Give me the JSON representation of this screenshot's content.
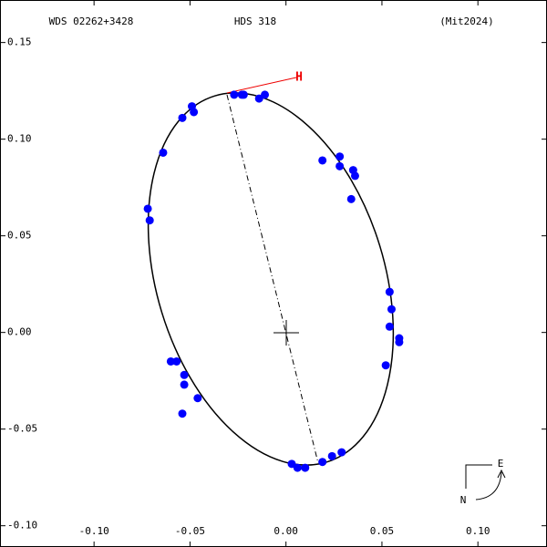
{
  "chart_data": {
    "type": "scatter",
    "subtitle": "WDS 02262+3428",
    "title": "HDS 318",
    "reference": "(Mit2024)",
    "periastron_label": "H",
    "east_label": "E",
    "north_label": "N",
    "color": "#0000ff",
    "xlim": [
      -0.149,
      0.136
    ],
    "ylim": [
      -0.111,
      0.172
    ],
    "xticks": [
      {
        "value": -0.1,
        "label": "-0.10"
      },
      -0.05,
      {
        "value": 0,
        "label": "0.00"
      },
      0.05,
      {
        "value": 0.1,
        "label": "0.10"
      }
    ],
    "yticks": [
      {
        "value": -0.1,
        "label": "-0.10"
      },
      -0.05,
      {
        "value": 0,
        "label": "0.00"
      },
      0.05,
      {
        "value": 0.1,
        "label": "0.10"
      },
      0.15
    ],
    "x": [
      -0.027,
      -0.023,
      -0.022,
      -0.014,
      -0.011,
      -0.054,
      -0.049,
      -0.048,
      -0.064,
      -0.072,
      -0.071,
      0.019,
      0.028,
      0.028,
      0.035,
      0.036,
      0.034,
      0.054,
      0.055,
      0.054,
      0.059,
      0.059,
      0.052,
      -0.06,
      -0.057,
      -0.053,
      -0.053,
      -0.046,
      -0.054,
      0.003,
      0.006,
      0.01,
      0.019,
      0.024,
      0.029
    ],
    "y": [
      0.123,
      0.123,
      0.123,
      0.121,
      0.123,
      0.111,
      0.117,
      0.114,
      0.093,
      0.064,
      0.058,
      0.089,
      0.091,
      0.086,
      0.084,
      0.081,
      0.069,
      0.021,
      0.012,
      0.003,
      -0.003,
      -0.005,
      -0.017,
      -0.015,
      -0.015,
      -0.022,
      -0.027,
      -0.034,
      -0.042,
      -0.068,
      -0.07,
      -0.07,
      -0.067,
      -0.064,
      -0.062
    ]
  }
}
